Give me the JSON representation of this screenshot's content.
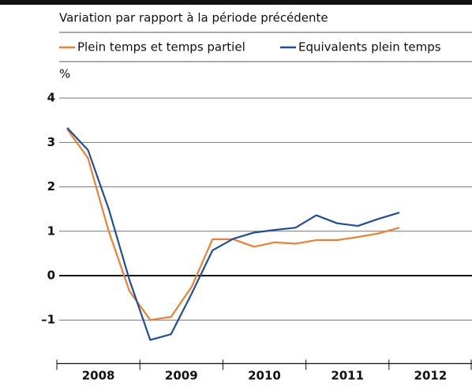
{
  "chart_data": {
    "type": "line",
    "subtitle": "Variation par rapport à la période précédente",
    "y_unit": "%",
    "x": [
      2008.125,
      2008.375,
      2008.625,
      2008.875,
      2009.125,
      2009.375,
      2009.625,
      2009.875,
      2010.125,
      2010.375,
      2010.625,
      2010.875,
      2011.125,
      2011.375,
      2011.625,
      2011.875,
      2012.125
    ],
    "series": [
      {
        "name": "Plein temps et temps partiel",
        "color": "#f08030",
        "values": [
          3.3,
          2.65,
          1.0,
          -0.35,
          -1.0,
          -0.93,
          -0.25,
          0.82,
          0.82,
          0.65,
          0.75,
          0.72,
          0.8,
          0.8,
          0.87,
          0.95,
          1.08
        ]
      },
      {
        "name": "Equivalents plein temps",
        "color": "#1f4e9c",
        "values": [
          3.33,
          2.83,
          1.5,
          -0.1,
          -1.45,
          -1.32,
          -0.4,
          0.57,
          0.83,
          0.97,
          1.03,
          1.08,
          1.36,
          1.18,
          1.12,
          1.28,
          1.42
        ]
      }
    ],
    "xlim": [
      2008,
      2013
    ],
    "xticks": [
      2008,
      2009,
      2010,
      2011,
      2012,
      2013
    ],
    "x_period_labels": [
      "2008",
      "2009",
      "2010",
      "2011",
      "2012"
    ],
    "ylim": [
      -2,
      4.4
    ],
    "yticks": [
      {
        "value": -1,
        "label": "–1"
      },
      0,
      1,
      2,
      3,
      4
    ],
    "grid": true
  }
}
